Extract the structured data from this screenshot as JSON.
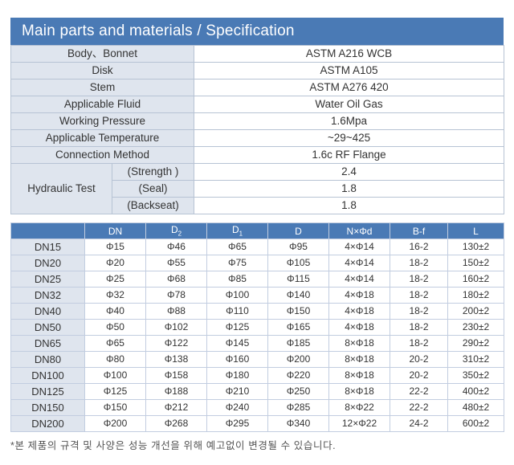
{
  "title": "Main parts and materials / Specification",
  "spec": {
    "rows": [
      {
        "label": "Body、Bonnet",
        "value": "ASTM A216 WCB"
      },
      {
        "label": "Disk",
        "value": "ASTM A105"
      },
      {
        "label": "Stem",
        "value": "ASTM A276 420"
      },
      {
        "label": "Applicable Fluid",
        "value": "Water Oil Gas"
      },
      {
        "label": "Working Pressure",
        "value": "1.6Mpa"
      },
      {
        "label": "Applicable Temperature",
        "value": "~29~425"
      },
      {
        "label": "Connection Method",
        "value": "1.6c RF Flange"
      }
    ],
    "hydraulic": {
      "label": "Hydraulic Test",
      "items": [
        {
          "label": "(Strength )",
          "value": "2.4"
        },
        {
          "label": "(Seal)",
          "value": "1.8"
        },
        {
          "label": "(Backseat)",
          "value": "1.8"
        }
      ]
    }
  },
  "dims": {
    "headers": {
      "dn": "DN",
      "d2": "D",
      "d2_sub": "2",
      "d1": "D",
      "d1_sub": "1",
      "d": "D",
      "nd": "N×Φd",
      "bf": "B-f",
      "l": "L"
    },
    "rows": [
      [
        "DN15",
        "Φ15",
        "Φ46",
        "Φ65",
        "Φ95",
        "4×Φ14",
        "16-2",
        "130±2"
      ],
      [
        "DN20",
        "Φ20",
        "Φ55",
        "Φ75",
        "Φ105",
        "4×Φ14",
        "18-2",
        "150±2"
      ],
      [
        "DN25",
        "Φ25",
        "Φ68",
        "Φ85",
        "Φ115",
        "4×Φ14",
        "18-2",
        "160±2"
      ],
      [
        "DN32",
        "Φ32",
        "Φ78",
        "Φ100",
        "Φ140",
        "4×Φ18",
        "18-2",
        "180±2"
      ],
      [
        "DN40",
        "Φ40",
        "Φ88",
        "Φ110",
        "Φ150",
        "4×Φ18",
        "18-2",
        "200±2"
      ],
      [
        "DN50",
        "Φ50",
        "Φ102",
        "Φ125",
        "Φ165",
        "4×Φ18",
        "18-2",
        "230±2"
      ],
      [
        "DN65",
        "Φ65",
        "Φ122",
        "Φ145",
        "Φ185",
        "8×Φ18",
        "18-2",
        "290±2"
      ],
      [
        "DN80",
        "Φ80",
        "Φ138",
        "Φ160",
        "Φ200",
        "8×Φ18",
        "20-2",
        "310±2"
      ],
      [
        "DN100",
        "Φ100",
        "Φ158",
        "Φ180",
        "Φ220",
        "8×Φ18",
        "20-2",
        "350±2"
      ],
      [
        "DN125",
        "Φ125",
        "Φ188",
        "Φ210",
        "Φ250",
        "8×Φ18",
        "22-2",
        "400±2"
      ],
      [
        "DN150",
        "Φ150",
        "Φ212",
        "Φ240",
        "Φ285",
        "8×Φ22",
        "22-2",
        "480±2"
      ],
      [
        "DN200",
        "Φ200",
        "Φ268",
        "Φ295",
        "Φ340",
        "12×Φ22",
        "24-2",
        "600±2"
      ]
    ]
  },
  "note": "*본 제품의 규격 및 사양은 성능 개선을 위해 예고없이 변경될 수 있습니다."
}
